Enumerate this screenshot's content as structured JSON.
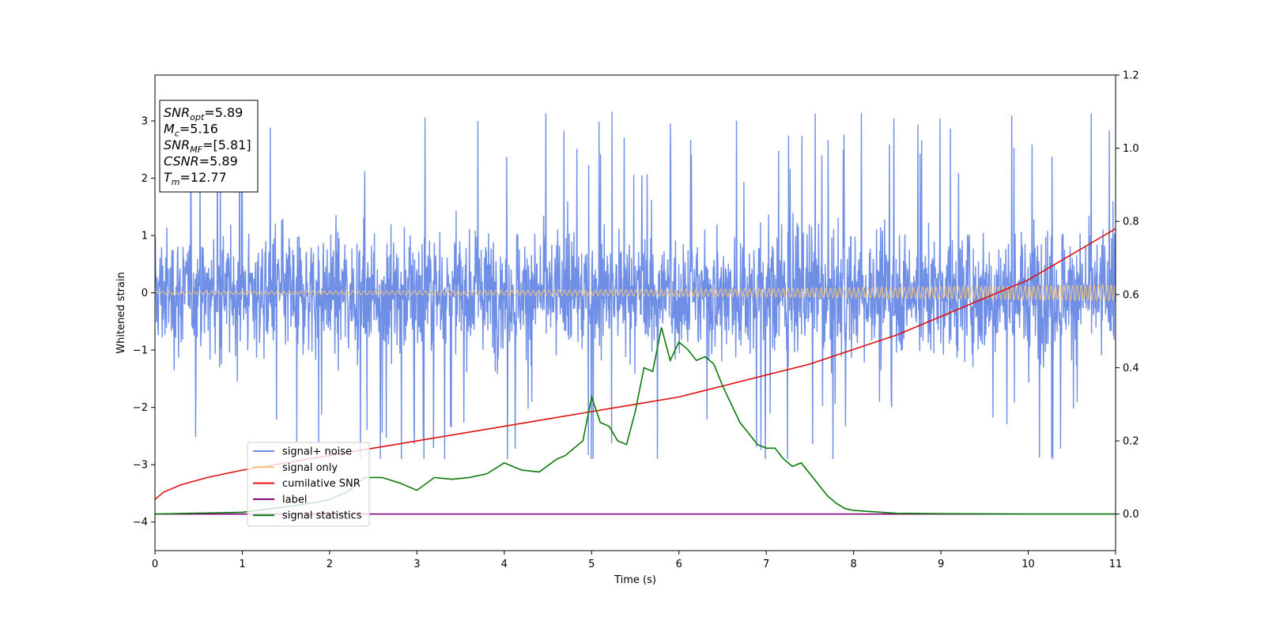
{
  "chart_data": {
    "type": "line",
    "xlabel": "Time (s)",
    "ylabel": "Whitened strain",
    "xlim": [
      0,
      11
    ],
    "ylim": [
      -4.5,
      3.8
    ],
    "y2lim": [
      -0.1,
      1.2
    ],
    "x_ticks": [
      0,
      1,
      2,
      3,
      4,
      5,
      6,
      7,
      8,
      9,
      10,
      11
    ],
    "y_ticks": [
      -4,
      -3,
      -2,
      -1,
      0,
      1,
      2,
      3
    ],
    "y2_ticks": [
      0.0,
      0.2,
      0.4,
      0.6,
      0.8,
      1.0,
      1.2
    ],
    "grid": false,
    "legend_position": "lower-left",
    "series": [
      {
        "name": "signal+ noise",
        "axis": "left",
        "color": "#6f8ee6",
        "style": "noise",
        "range": [
          -2.9,
          3.4
        ],
        "core": [
          -1.3,
          1.3
        ]
      },
      {
        "name": "signal only",
        "axis": "left",
        "color": "#f5c77e",
        "style": "chirp",
        "amp_start": 0.03,
        "amp_end": 0.15
      },
      {
        "name": "cumilative SNR",
        "axis": "right",
        "color": "#e01010",
        "x": [
          0,
          0.1,
          0.3,
          0.6,
          1,
          1.5,
          2,
          2.5,
          3,
          3.5,
          4,
          4.5,
          5,
          5.5,
          6,
          6.5,
          7,
          7.5,
          8,
          8.5,
          9,
          9.5,
          10,
          10.5,
          11
        ],
        "values": [
          0.04,
          0.06,
          0.08,
          0.1,
          0.12,
          0.14,
          0.16,
          0.18,
          0.2,
          0.22,
          0.24,
          0.26,
          0.28,
          0.3,
          0.32,
          0.35,
          0.38,
          0.41,
          0.45,
          0.49,
          0.54,
          0.59,
          0.64,
          0.71,
          0.78
        ]
      },
      {
        "name": "label",
        "axis": "right",
        "color": "#800080",
        "x": [
          0,
          11
        ],
        "values": [
          0.0,
          0.0
        ]
      },
      {
        "name": "signal statistics",
        "axis": "right",
        "color": "#0a7a0a",
        "x": [
          0,
          1,
          1.5,
          1.8,
          2,
          2.2,
          2.4,
          2.6,
          2.8,
          3.0,
          3.2,
          3.4,
          3.6,
          3.8,
          4.0,
          4.2,
          4.4,
          4.6,
          4.7,
          4.8,
          4.9,
          5.0,
          5.1,
          5.2,
          5.3,
          5.4,
          5.5,
          5.6,
          5.7,
          5.8,
          5.9,
          6.0,
          6.1,
          6.2,
          6.3,
          6.4,
          6.5,
          6.6,
          6.7,
          6.8,
          6.9,
          7.0,
          7.1,
          7.2,
          7.3,
          7.4,
          7.5,
          7.6,
          7.7,
          7.8,
          7.9,
          8.0,
          8.5,
          9,
          10,
          11
        ],
        "values": [
          0.0,
          0.005,
          0.02,
          0.03,
          0.04,
          0.06,
          0.1,
          0.1,
          0.085,
          0.065,
          0.1,
          0.095,
          0.1,
          0.11,
          0.14,
          0.12,
          0.115,
          0.15,
          0.16,
          0.18,
          0.2,
          0.32,
          0.25,
          0.24,
          0.2,
          0.19,
          0.28,
          0.4,
          0.39,
          0.51,
          0.42,
          0.47,
          0.45,
          0.42,
          0.43,
          0.41,
          0.35,
          0.3,
          0.25,
          0.22,
          0.19,
          0.18,
          0.18,
          0.15,
          0.13,
          0.14,
          0.11,
          0.08,
          0.05,
          0.03,
          0.015,
          0.01,
          0.002,
          0.001,
          0.0,
          0.0
        ]
      }
    ],
    "annotation": [
      {
        "base": "SNR",
        "sub": "opt",
        "value": "=5.89"
      },
      {
        "base": "M",
        "sub": "c",
        "value": "=5.16"
      },
      {
        "base": "SNR",
        "sub": "MF",
        "value": "=[5.81]"
      },
      {
        "base": "CSNR",
        "sub": "",
        "value": "=5.89"
      },
      {
        "base": "T",
        "sub": "m",
        "value": "=12.77"
      }
    ]
  }
}
